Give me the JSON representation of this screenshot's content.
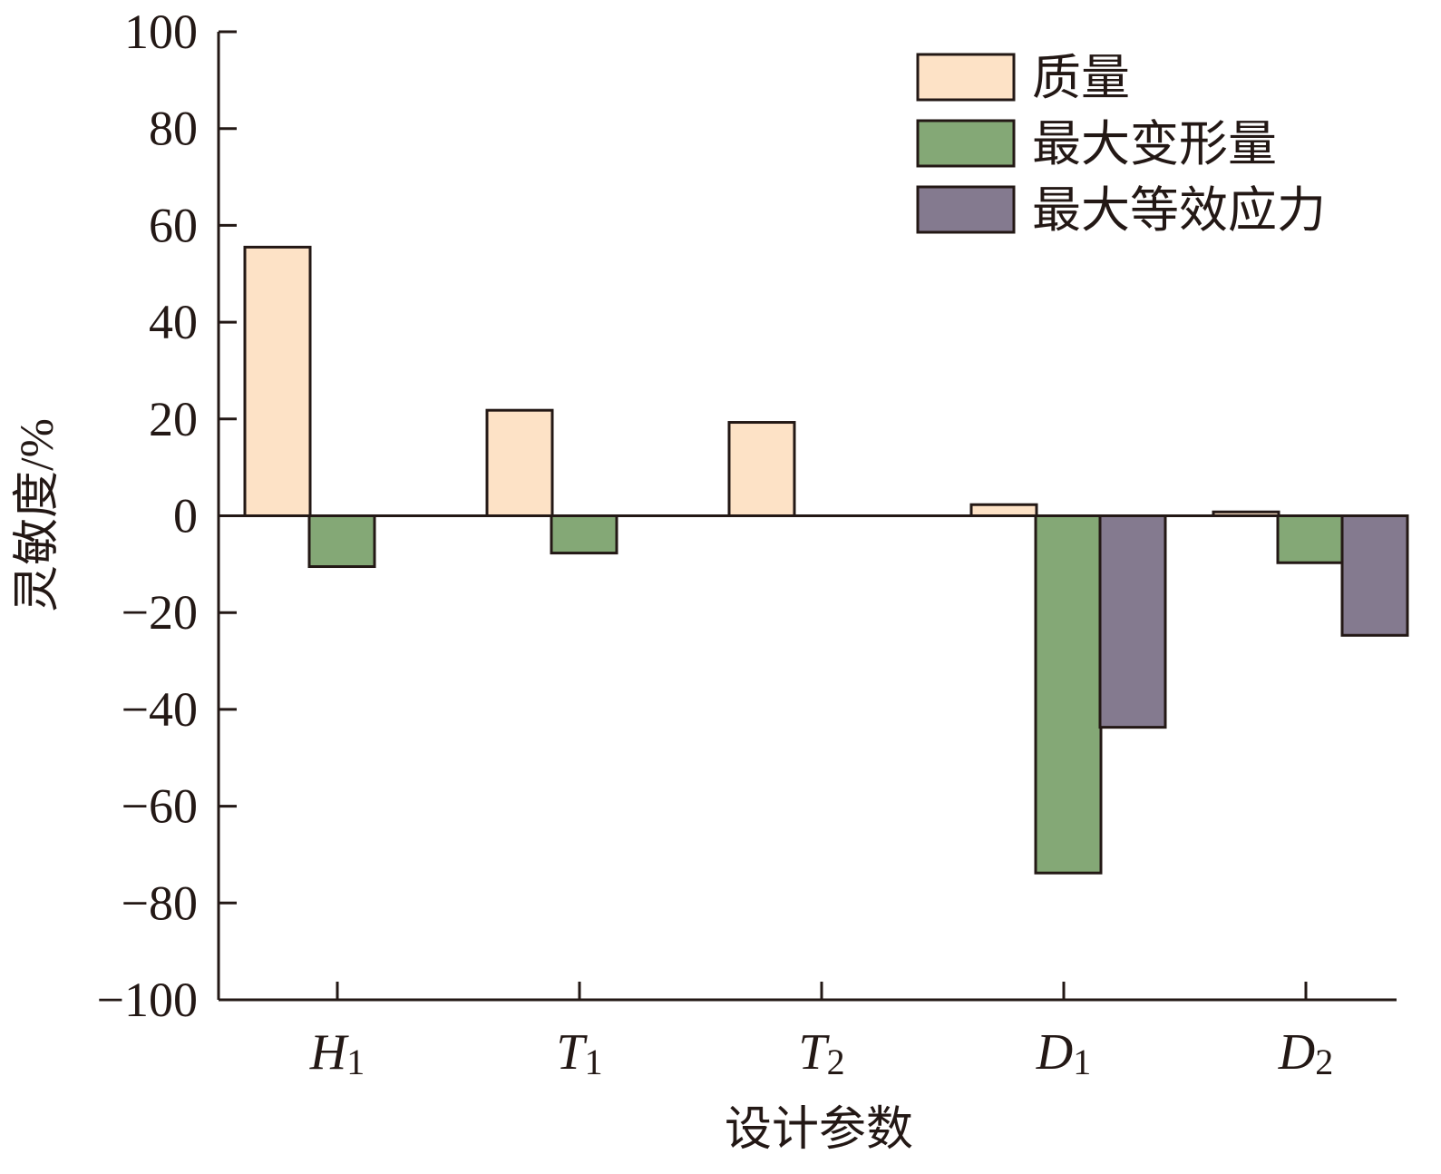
{
  "chart_data": {
    "type": "bar",
    "xlabel": "设计参数",
    "ylabel": "灵敏度/%",
    "ylim": [
      -100,
      100
    ],
    "yticks": [
      100,
      80,
      60,
      40,
      20,
      0,
      -20,
      -40,
      -60,
      -80,
      -100
    ],
    "ytick_labels": [
      "100",
      "80",
      "60",
      "40",
      "20",
      "0",
      "−20",
      "−40",
      "−60",
      "−80",
      "−100"
    ],
    "categories": [
      {
        "main": "H",
        "sub": "1"
      },
      {
        "main": "T",
        "sub": "1"
      },
      {
        "main": "T",
        "sub": "2"
      },
      {
        "main": "D",
        "sub": "1"
      },
      {
        "main": "D",
        "sub": "2"
      }
    ],
    "series": [
      {
        "name": "质量",
        "color": "#fde2c6",
        "values": [
          55.5,
          21.8,
          19.3,
          2.3,
          0.8
        ]
      },
      {
        "name": "最大变形量",
        "color": "#84a876",
        "values": [
          -10.5,
          -7.7,
          0,
          -73.8,
          -9.7
        ]
      },
      {
        "name": "最大等效应力",
        "color": "#847a8f",
        "values": [
          0,
          0,
          0,
          -43.7,
          -24.7
        ]
      }
    ],
    "grid": false,
    "legend_position": "top-right"
  }
}
